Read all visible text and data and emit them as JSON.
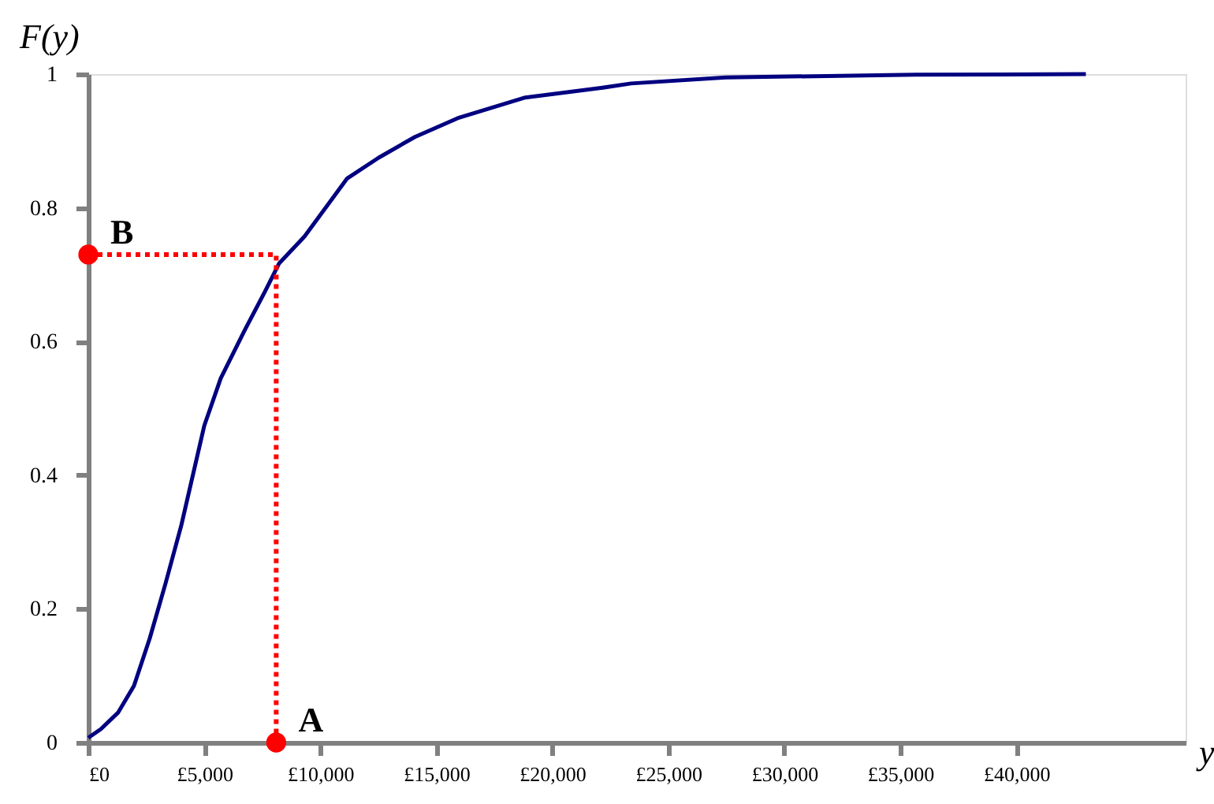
{
  "chart_data": {
    "type": "line",
    "xlabel": "y",
    "ylabel": "F(y)",
    "xlim": [
      0,
      47300
    ],
    "ylim": [
      0,
      1
    ],
    "xticks": [
      {
        "value": 0,
        "label": "£0"
      },
      {
        "value": 5000,
        "label": "£5,000"
      },
      {
        "value": 10000,
        "label": "£10,000"
      },
      {
        "value": 15000,
        "label": "£15,000"
      },
      {
        "value": 20000,
        "label": "£20,000"
      },
      {
        "value": 25000,
        "label": "£25,000"
      },
      {
        "value": 30000,
        "label": "£30,000"
      },
      {
        "value": 35000,
        "label": "£35,000"
      },
      {
        "value": 40000,
        "label": "£40,000"
      }
    ],
    "yticks": [
      0,
      0.2,
      0.4,
      0.6,
      0.8,
      1
    ],
    "grid": false,
    "series": [
      {
        "color": "#000080",
        "line_style": "solid",
        "x": [
          0,
          540,
          1290,
          1970,
          2650,
          3330,
          4010,
          5000,
          5710,
          6730,
          7620,
          8230,
          9320,
          11160,
          12520,
          14080,
          15920,
          18840,
          22040,
          23400,
          27480,
          35650,
          43000
        ],
        "values": [
          0.007,
          0.02,
          0.045,
          0.085,
          0.156,
          0.238,
          0.325,
          0.474,
          0.545,
          0.616,
          0.675,
          0.717,
          0.757,
          0.844,
          0.875,
          0.906,
          0.934,
          0.965,
          0.979,
          0.986,
          0.995,
          0.999,
          1.0
        ]
      },
      {
        "type": "line",
        "color": "#ff0000",
        "line_style": "dotted",
        "x": [
          0,
          8100,
          8100
        ],
        "values": [
          0.73,
          0.73,
          0
        ]
      },
      {
        "type": "scatter",
        "color": "#ff0000",
        "marker": "circle",
        "x": [
          8100,
          0
        ],
        "values": [
          0,
          0.73
        ]
      }
    ],
    "annotations": [
      {
        "text": "A",
        "x": 8100,
        "y": 0
      },
      {
        "text": "B",
        "x": 0,
        "y": 0.73
      }
    ]
  }
}
